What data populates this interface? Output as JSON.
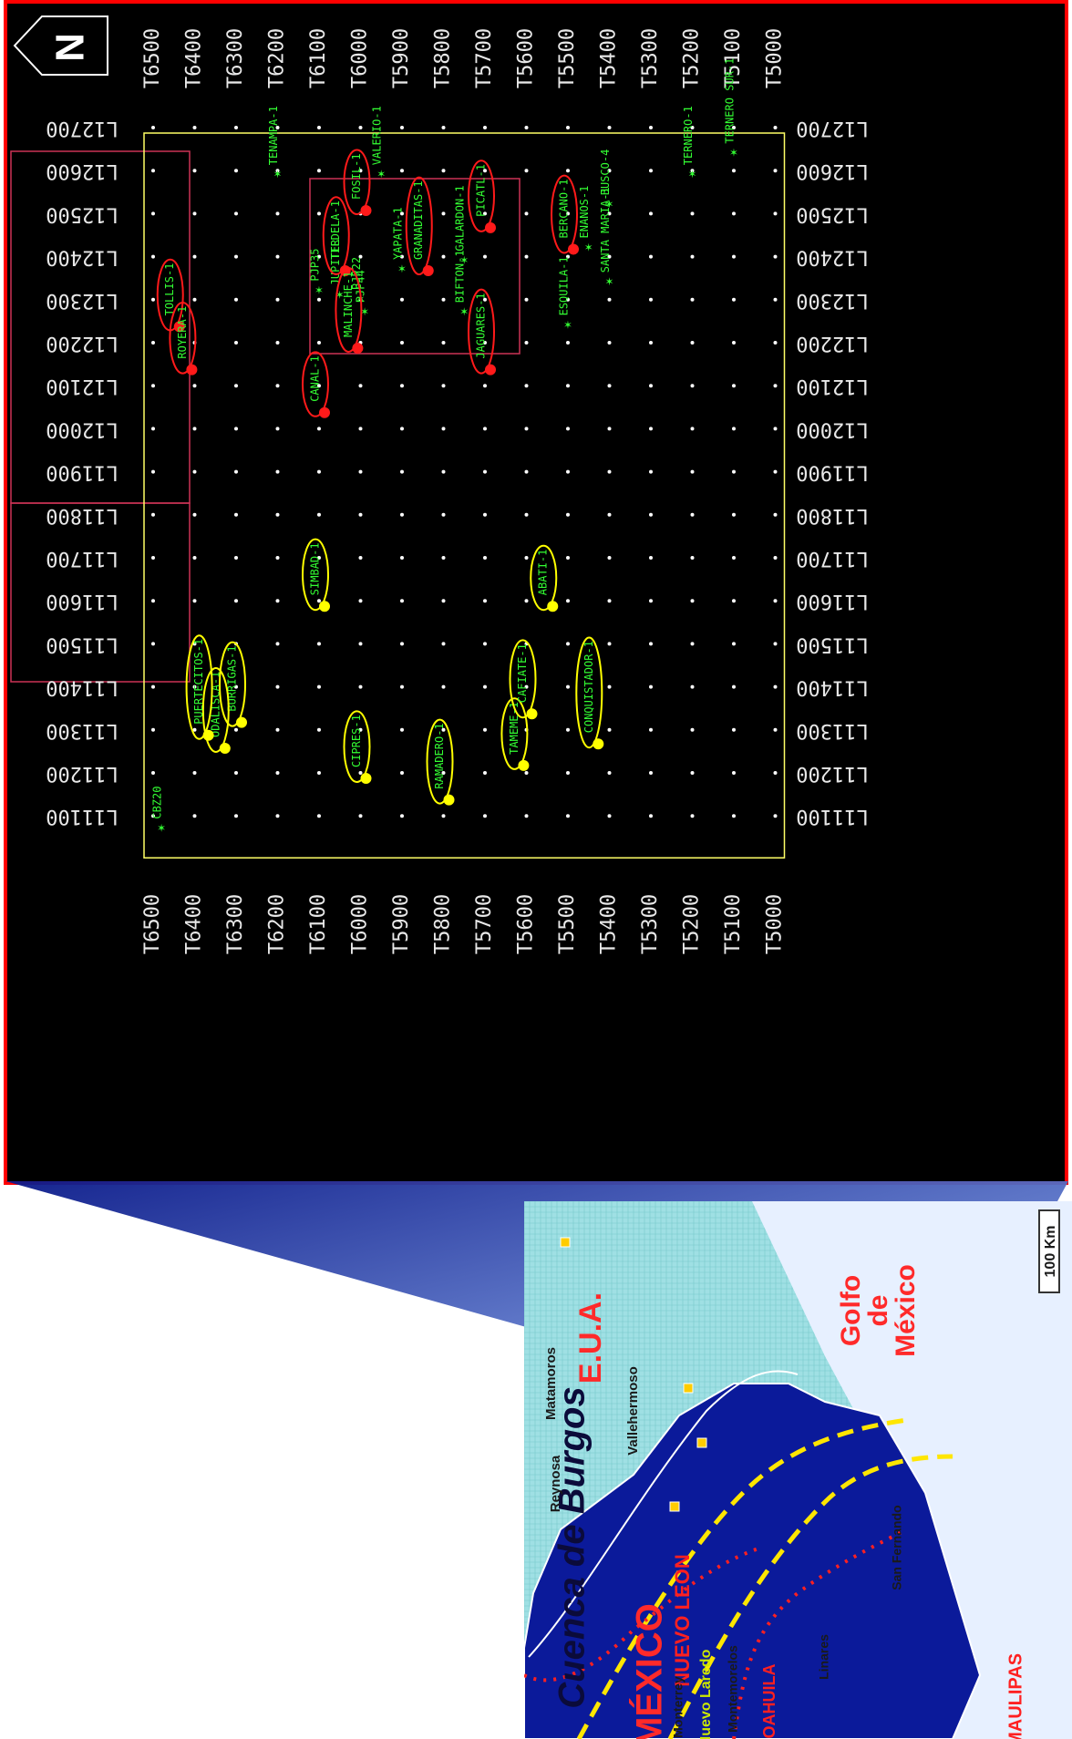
{
  "map": {
    "north_label": "N",
    "row_labels": [
      "T6500",
      "T6400",
      "T6300",
      "T6200",
      "T6100",
      "T6000",
      "T5900",
      "T5800",
      "T5700",
      "T5600",
      "T5500",
      "T5400",
      "T5300",
      "T5200",
      "T5100",
      "T5000"
    ],
    "col_labels": [
      "L12700",
      "L12600",
      "L12500",
      "L12400",
      "L12300",
      "L12200",
      "L12100",
      "L12000",
      "L11900",
      "L11800",
      "L11700",
      "L11600",
      "L11500",
      "L11400",
      "L11300",
      "L11200",
      "L11100"
    ],
    "colors": {
      "grid": "#ffff66",
      "red_pick": "#ff1a1a",
      "yellow_pick": "#ffff00",
      "well_label": "#33ff33",
      "outline": "#ff0000",
      "box": "#cc3355"
    },
    "wells": [
      {
        "label": "TENAMPA-1",
        "row": "T6200",
        "col": "L12600",
        "status": "other"
      },
      {
        "label": "VALERIO-1",
        "row": "T5950",
        "col": "L12600",
        "status": "other"
      },
      {
        "label": "FOSIL-1",
        "row": "T6000",
        "col": "L12520",
        "status": "red"
      },
      {
        "label": "PICATL-1",
        "row": "T5700",
        "col": "L12480",
        "status": "red"
      },
      {
        "label": "GALARDON-1",
        "row": "T5750",
        "col": "L12400",
        "status": "other"
      },
      {
        "label": "BERCANO-1",
        "row": "T5500",
        "col": "L12430",
        "status": "red"
      },
      {
        "label": "BUSCO-4",
        "row": "T5400",
        "col": "L12530",
        "status": "other"
      },
      {
        "label": "ENANOS-1",
        "row": "T5450",
        "col": "L12430",
        "status": "other"
      },
      {
        "label": "SANTA MARIA-1",
        "row": "T5400",
        "col": "L12350",
        "status": "other"
      },
      {
        "label": "TERNERO-1",
        "row": "T5200",
        "col": "L12600",
        "status": "other"
      },
      {
        "label": "TERNERO SUR-1",
        "row": "T5100",
        "col": "L12650",
        "status": "other"
      },
      {
        "label": "GRANADITAS-1",
        "row": "T5850",
        "col": "L12380",
        "status": "red"
      },
      {
        "label": "YAPATA-1",
        "row": "T5900",
        "col": "L12380",
        "status": "other"
      },
      {
        "label": "BIFTON-1",
        "row": "T5750",
        "col": "L12280",
        "status": "other"
      },
      {
        "label": "PJP35",
        "row": "T6100",
        "col": "L12330",
        "status": "other"
      },
      {
        "label": "JUPITER",
        "row": "T6050",
        "col": "L12320",
        "status": "other"
      },
      {
        "label": "PJP22",
        "row": "T6000",
        "col": "L12310",
        "status": "other"
      },
      {
        "label": "PJP44",
        "row": "T5990",
        "col": "L12280",
        "status": "other"
      },
      {
        "label": "TILDELA-1",
        "row": "T6050",
        "col": "L12380",
        "status": "red"
      },
      {
        "label": "MALINCHE-1",
        "row": "T6020",
        "col": "L12200",
        "status": "red"
      },
      {
        "label": "JAGUARES-1",
        "row": "T5700",
        "col": "L12150",
        "status": "red"
      },
      {
        "label": "ESQUILA-1",
        "row": "T5500",
        "col": "L12250",
        "status": "other"
      },
      {
        "label": "CANAL-1",
        "row": "T6100",
        "col": "L12050",
        "status": "red"
      },
      {
        "label": "TOLLIS-1",
        "row": "T6450",
        "col": "L12250",
        "status": "red"
      },
      {
        "label": "ROYERA-1",
        "row": "T6420",
        "col": "L12150",
        "status": "red"
      },
      {
        "label": "SIMBAD-1",
        "row": "T6100",
        "col": "L11600",
        "status": "yellow"
      },
      {
        "label": "ABATI-1",
        "row": "T5550",
        "col": "L11600",
        "status": "yellow"
      },
      {
        "label": "BURRIGAS-1",
        "row": "T6300",
        "col": "L11330",
        "status": "yellow"
      },
      {
        "label": "ODALISCA-1",
        "row": "T6340",
        "col": "L11270",
        "status": "yellow"
      },
      {
        "label": "PUERTECITOS-1",
        "row": "T6380",
        "col": "L11300",
        "status": "yellow"
      },
      {
        "label": "CIPRES-1",
        "row": "T6000",
        "col": "L11200",
        "status": "yellow"
      },
      {
        "label": "RAMADERO-1",
        "row": "T5800",
        "col": "L11150",
        "status": "yellow"
      },
      {
        "label": "TAMEME-1",
        "row": "T5620",
        "col": "L11230",
        "status": "yellow"
      },
      {
        "label": "CAFIATE-1",
        "row": "T5600",
        "col": "L11350",
        "status": "yellow"
      },
      {
        "label": "CONQUISTADOR-1",
        "row": "T5440",
        "col": "L11280",
        "status": "yellow"
      },
      {
        "label": "CBZ20",
        "row": "T6480",
        "col": "L11080",
        "status": "other"
      }
    ]
  },
  "inset": {
    "region_labels": [
      "E.U.A.",
      "MÉXICO"
    ],
    "basin_label": "Cuenca de Burgos",
    "state_labels": [
      "COAHUILA",
      "NUEVO LEON",
      "TAMAULIPAS"
    ],
    "city_labels": [
      "Nuevo Laredo",
      "Reynosa",
      "Matamoros",
      "Vallehermoso",
      "Monterrey",
      "Montemorelos",
      "Linares",
      "San Fernando"
    ],
    "gulf_label": [
      "Golfo",
      "de",
      "México"
    ],
    "scale_label": "100 Km"
  }
}
